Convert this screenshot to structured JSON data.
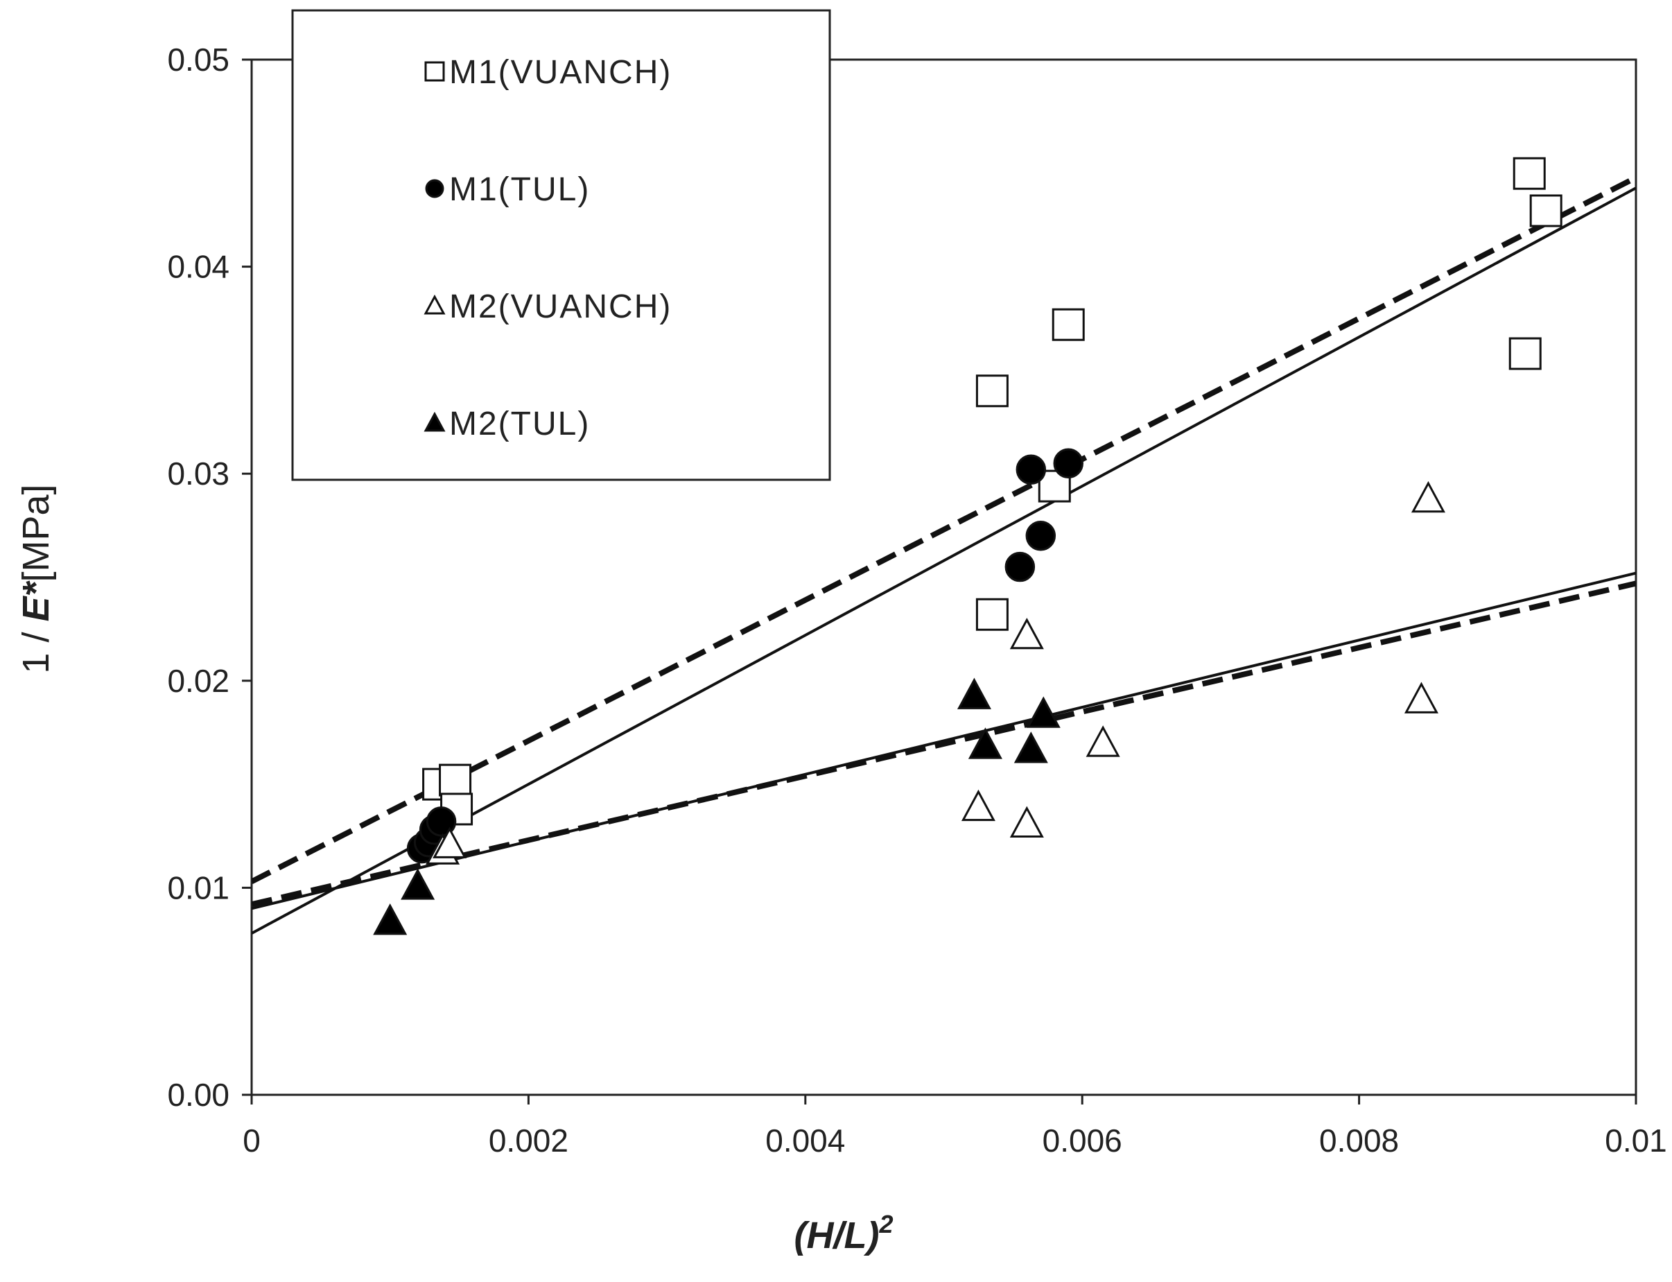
{
  "chart_data": {
    "type": "scatter",
    "title": "",
    "xlabel": {
      "base": "(H/L)",
      "sup": "2"
    },
    "ylabel": {
      "prefix": "1 / ",
      "bold": "E*",
      "suffix": "[MPa]"
    },
    "xlim": [
      0,
      0.01
    ],
    "ylim": [
      0,
      0.05
    ],
    "xticks": [
      0,
      0.002,
      0.004,
      0.006,
      0.008,
      0.01
    ],
    "xtick_labels": [
      "0",
      "0.002",
      "0.004",
      "0.006",
      "0.008",
      "0.01"
    ],
    "yticks": [
      0,
      0.01,
      0.02,
      0.03,
      0.04,
      0.05
    ],
    "ytick_labels": [
      "0.00",
      "0.01",
      "0.02",
      "0.03",
      "0.04",
      "0.05"
    ],
    "grid": false,
    "legend_position": "top-left",
    "series": [
      {
        "name": "M1(VUANCH)",
        "marker": "square-open",
        "points": [
          [
            0.00135,
            0.015
          ],
          [
            0.00147,
            0.0152
          ],
          [
            0.00148,
            0.0138
          ],
          [
            0.00535,
            0.034
          ],
          [
            0.00535,
            0.0232
          ],
          [
            0.0058,
            0.0294
          ],
          [
            0.0059,
            0.0372
          ],
          [
            0.0092,
            0.0358
          ],
          [
            0.00923,
            0.0445
          ],
          [
            0.00935,
            0.0427
          ]
        ]
      },
      {
        "name": "M1(TUL)",
        "marker": "circle-filled",
        "points": [
          [
            0.00123,
            0.0119
          ],
          [
            0.00128,
            0.0122
          ],
          [
            0.00132,
            0.0128
          ],
          [
            0.00137,
            0.0132
          ],
          [
            0.00555,
            0.0255
          ],
          [
            0.00563,
            0.0302
          ],
          [
            0.0057,
            0.027
          ],
          [
            0.0059,
            0.0305
          ]
        ]
      },
      {
        "name": "M2(VUANCH)",
        "marker": "triangle-open",
        "points": [
          [
            0.00138,
            0.0118
          ],
          [
            0.00143,
            0.0121
          ],
          [
            0.00525,
            0.0139
          ],
          [
            0.0056,
            0.0131
          ],
          [
            0.0056,
            0.0222
          ],
          [
            0.00615,
            0.017
          ],
          [
            0.00845,
            0.0191
          ],
          [
            0.0085,
            0.0288
          ]
        ]
      },
      {
        "name": "M2(TUL)",
        "marker": "triangle-filled",
        "points": [
          [
            0.001,
            0.0084
          ],
          [
            0.0012,
            0.0101
          ],
          [
            0.00522,
            0.0193
          ],
          [
            0.0053,
            0.0169
          ],
          [
            0.00563,
            0.0167
          ],
          [
            0.00572,
            0.0184
          ]
        ]
      }
    ],
    "trendlines": [
      {
        "style": "solid",
        "intercept": 0.0078,
        "slope": 3.6
      },
      {
        "style": "dashed",
        "intercept": 0.0103,
        "slope": 3.4
      },
      {
        "style": "solid",
        "intercept": 0.009,
        "slope": 1.62
      },
      {
        "style": "dashed",
        "intercept": 0.0092,
        "slope": 1.55
      }
    ]
  }
}
